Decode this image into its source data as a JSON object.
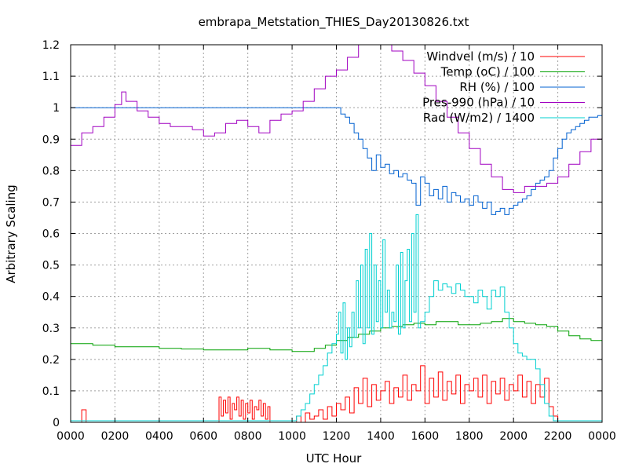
{
  "chart_data": {
    "type": "line",
    "title": "embrapa_Metstation_THIES_Day20130826.txt",
    "xlabel": "UTC Hour",
    "ylabel": "Arbitrary Scaling",
    "xlim": [
      0,
      24
    ],
    "ylim": [
      0,
      1.2
    ],
    "grid": true,
    "legend_position": "top-right",
    "x_ticks": [
      {
        "value": 0,
        "label": "0000"
      },
      {
        "value": 2,
        "label": "0200"
      },
      {
        "value": 4,
        "label": "0400"
      },
      {
        "value": 6,
        "label": "0600"
      },
      {
        "value": 8,
        "label": "0800"
      },
      {
        "value": 10,
        "label": "1000"
      },
      {
        "value": 12,
        "label": "1200"
      },
      {
        "value": 14,
        "label": "1400"
      },
      {
        "value": 16,
        "label": "1600"
      },
      {
        "value": 18,
        "label": "1800"
      },
      {
        "value": 20,
        "label": "2000"
      },
      {
        "value": 22,
        "label": "2200"
      },
      {
        "value": 24,
        "label": "0000"
      }
    ],
    "y_ticks": [
      {
        "value": 0,
        "label": "0"
      },
      {
        "value": 0.1,
        "label": "0.1"
      },
      {
        "value": 0.2,
        "label": "0.2"
      },
      {
        "value": 0.3,
        "label": "0.3"
      },
      {
        "value": 0.4,
        "label": "0.4"
      },
      {
        "value": 0.5,
        "label": "0.5"
      },
      {
        "value": 0.6,
        "label": "0.6"
      },
      {
        "value": 0.7,
        "label": "0.7"
      },
      {
        "value": 0.8,
        "label": "0.8"
      },
      {
        "value": 0.9,
        "label": "0.9"
      },
      {
        "value": 1,
        "label": "1"
      },
      {
        "value": 1.1,
        "label": "1.1"
      },
      {
        "value": 1.2,
        "label": "1.2"
      }
    ],
    "series": [
      {
        "name": "Windvel (m/s) / 10",
        "color": "#ff0000",
        "x": [
          0,
          0.4,
          0.5,
          0.6,
          0.7,
          0.8,
          1.0,
          2.0,
          4.0,
          6.0,
          6.7,
          6.8,
          6.9,
          7.0,
          7.1,
          7.2,
          7.3,
          7.4,
          7.5,
          7.6,
          7.7,
          7.8,
          7.9,
          8.0,
          8.1,
          8.2,
          8.3,
          8.4,
          8.5,
          8.6,
          8.7,
          8.8,
          8.9,
          9.0,
          9.2,
          9.6,
          10.0,
          10.2,
          10.4,
          10.6,
          10.8,
          11.0,
          11.2,
          11.4,
          11.6,
          11.8,
          12.0,
          12.2,
          12.4,
          12.6,
          12.8,
          13.0,
          13.2,
          13.4,
          13.6,
          13.8,
          14.0,
          14.2,
          14.4,
          14.6,
          14.8,
          15.0,
          15.2,
          15.4,
          15.6,
          15.8,
          16.0,
          16.2,
          16.4,
          16.6,
          16.8,
          17.0,
          17.2,
          17.4,
          17.6,
          17.8,
          18.0,
          18.2,
          18.4,
          18.6,
          18.8,
          19.0,
          19.2,
          19.4,
          19.6,
          19.8,
          20.0,
          20.2,
          20.4,
          20.6,
          20.8,
          21.0,
          21.2,
          21.4,
          21.6,
          21.8,
          22.0,
          22.2,
          23.0,
          24.0
        ],
        "y": [
          0,
          0,
          0.04,
          0.04,
          0,
          0,
          0,
          0,
          0,
          0,
          0.08,
          0.02,
          0.07,
          0.03,
          0.08,
          0.01,
          0.06,
          0.04,
          0.08,
          0.02,
          0.07,
          0.01,
          0.06,
          0.03,
          0.07,
          0.01,
          0.05,
          0.04,
          0.07,
          0.02,
          0.06,
          0.01,
          0.05,
          0.0,
          0,
          0,
          0,
          0.02,
          0.0,
          0.03,
          0.01,
          0.02,
          0.04,
          0.01,
          0.05,
          0.02,
          0.06,
          0.04,
          0.08,
          0.03,
          0.11,
          0.06,
          0.14,
          0.05,
          0.12,
          0.07,
          0.1,
          0.13,
          0.06,
          0.11,
          0.08,
          0.15,
          0.07,
          0.12,
          0.1,
          0.18,
          0.06,
          0.14,
          0.08,
          0.16,
          0.07,
          0.13,
          0.09,
          0.15,
          0.06,
          0.12,
          0.1,
          0.14,
          0.08,
          0.15,
          0.06,
          0.13,
          0.09,
          0.14,
          0.07,
          0.12,
          0.1,
          0.15,
          0.08,
          0.13,
          0.06,
          0.12,
          0.08,
          0.14,
          0.05,
          0.02,
          0.0,
          0,
          0,
          0
        ]
      },
      {
        "name": "Temp (oC) / 100",
        "color": "#00a000",
        "x": [
          0,
          1,
          2,
          3,
          4,
          5,
          6,
          7,
          8,
          9,
          10,
          11,
          11.5,
          12,
          12.5,
          13,
          13.5,
          14,
          14.5,
          15,
          15.5,
          16,
          16.5,
          17,
          17.5,
          18,
          18.5,
          19,
          19.5,
          20,
          20.5,
          21,
          21.5,
          22,
          22.5,
          23,
          23.5,
          24
        ],
        "y": [
          0.25,
          0.245,
          0.24,
          0.24,
          0.235,
          0.233,
          0.23,
          0.23,
          0.235,
          0.23,
          0.225,
          0.235,
          0.245,
          0.26,
          0.27,
          0.28,
          0.29,
          0.3,
          0.305,
          0.31,
          0.315,
          0.31,
          0.32,
          0.32,
          0.31,
          0.31,
          0.315,
          0.32,
          0.33,
          0.32,
          0.315,
          0.31,
          0.305,
          0.29,
          0.275,
          0.265,
          0.26,
          0.26
        ]
      },
      {
        "name": "RH (%) / 100",
        "color": "#0060d0",
        "x": [
          0,
          12,
          12.2,
          12.4,
          12.6,
          12.8,
          13.0,
          13.2,
          13.4,
          13.6,
          13.8,
          14.0,
          14.2,
          14.4,
          14.6,
          14.8,
          15.0,
          15.2,
          15.4,
          15.6,
          15.8,
          16.0,
          16.2,
          16.4,
          16.6,
          16.8,
          17.0,
          17.2,
          17.4,
          17.6,
          17.8,
          18.0,
          18.2,
          18.4,
          18.6,
          18.8,
          19.0,
          19.2,
          19.4,
          19.6,
          19.8,
          20.0,
          20.2,
          20.4,
          20.6,
          20.8,
          21.0,
          21.2,
          21.4,
          21.6,
          21.8,
          22.0,
          22.2,
          22.4,
          22.6,
          22.8,
          23.0,
          23.2,
          23.4,
          23.6,
          23.8,
          24.0
        ],
        "y": [
          1.0,
          1.0,
          0.98,
          0.97,
          0.95,
          0.92,
          0.9,
          0.87,
          0.84,
          0.8,
          0.85,
          0.81,
          0.82,
          0.79,
          0.8,
          0.78,
          0.79,
          0.77,
          0.76,
          0.69,
          0.78,
          0.76,
          0.72,
          0.74,
          0.71,
          0.75,
          0.7,
          0.73,
          0.72,
          0.7,
          0.71,
          0.69,
          0.72,
          0.7,
          0.68,
          0.7,
          0.66,
          0.67,
          0.68,
          0.66,
          0.68,
          0.69,
          0.7,
          0.71,
          0.72,
          0.74,
          0.76,
          0.77,
          0.78,
          0.8,
          0.84,
          0.87,
          0.9,
          0.92,
          0.93,
          0.94,
          0.95,
          0.96,
          0.97,
          0.97,
          0.975,
          0.98
        ]
      },
      {
        "name": "Pres-990 (hPa) / 10",
        "color": "#a000c0",
        "x": [
          0,
          0.5,
          1.0,
          1.5,
          2.0,
          2.3,
          2.5,
          3.0,
          3.5,
          4.0,
          4.5,
          5.0,
          5.5,
          6.0,
          6.5,
          7.0,
          7.5,
          8.0,
          8.5,
          9.0,
          9.5,
          10.0,
          10.5,
          11.0,
          11.5,
          12.0,
          12.5,
          13.0,
          13.5,
          14.0,
          14.5,
          15.0,
          15.5,
          16.0,
          16.5,
          17.0,
          17.5,
          18.0,
          18.5,
          19.0,
          19.5,
          20.0,
          20.5,
          21.0,
          21.5,
          22.0,
          22.5,
          23.0,
          23.5,
          24.0
        ],
        "y": [
          0.88,
          0.92,
          0.94,
          0.97,
          1.01,
          1.05,
          1.02,
          0.99,
          0.97,
          0.95,
          0.94,
          0.94,
          0.93,
          0.91,
          0.92,
          0.95,
          0.96,
          0.94,
          0.92,
          0.96,
          0.98,
          0.99,
          1.02,
          1.06,
          1.1,
          1.12,
          1.16,
          1.2,
          1.21,
          1.2,
          1.18,
          1.15,
          1.11,
          1.07,
          1.02,
          0.97,
          0.92,
          0.87,
          0.82,
          0.78,
          0.74,
          0.73,
          0.75,
          0.75,
          0.76,
          0.78,
          0.82,
          0.86,
          0.9,
          0.95
        ]
      },
      {
        "name": "Rad (W/m2) / 1400",
        "color": "#00d0d0",
        "x": [
          0,
          10.0,
          10.2,
          10.4,
          10.6,
          10.8,
          11.0,
          11.2,
          11.4,
          11.6,
          11.8,
          12.0,
          12.1,
          12.2,
          12.3,
          12.4,
          12.5,
          12.6,
          12.7,
          12.8,
          12.9,
          13.0,
          13.1,
          13.2,
          13.3,
          13.4,
          13.5,
          13.6,
          13.7,
          13.8,
          13.9,
          14.0,
          14.1,
          14.2,
          14.3,
          14.4,
          14.5,
          14.6,
          14.7,
          14.8,
          14.9,
          15.0,
          15.1,
          15.2,
          15.3,
          15.4,
          15.5,
          15.6,
          15.7,
          15.8,
          16.0,
          16.2,
          16.4,
          16.6,
          16.8,
          17.0,
          17.2,
          17.4,
          17.6,
          17.8,
          18.0,
          18.2,
          18.4,
          18.6,
          18.8,
          19.0,
          19.2,
          19.4,
          19.6,
          19.8,
          20.0,
          20.2,
          20.4,
          20.6,
          20.8,
          21.0,
          21.2,
          21.4,
          21.6,
          21.8,
          22.0,
          22.5,
          23.0,
          24.0
        ],
        "y": [
          0.005,
          0.005,
          0.02,
          0.04,
          0.06,
          0.09,
          0.12,
          0.15,
          0.18,
          0.22,
          0.25,
          0.28,
          0.35,
          0.22,
          0.38,
          0.2,
          0.3,
          0.24,
          0.35,
          0.27,
          0.45,
          0.3,
          0.5,
          0.25,
          0.55,
          0.3,
          0.6,
          0.28,
          0.5,
          0.32,
          0.45,
          0.3,
          0.58,
          0.35,
          0.42,
          0.3,
          0.35,
          0.32,
          0.5,
          0.28,
          0.54,
          0.3,
          0.45,
          0.55,
          0.32,
          0.6,
          0.35,
          0.66,
          0.3,
          0.32,
          0.35,
          0.4,
          0.45,
          0.42,
          0.44,
          0.43,
          0.41,
          0.44,
          0.42,
          0.4,
          0.4,
          0.38,
          0.42,
          0.4,
          0.36,
          0.42,
          0.4,
          0.43,
          0.35,
          0.3,
          0.25,
          0.22,
          0.21,
          0.2,
          0.2,
          0.17,
          0.12,
          0.06,
          0.02,
          0.005,
          0.005,
          0.005,
          0.005,
          0.005
        ]
      }
    ]
  }
}
